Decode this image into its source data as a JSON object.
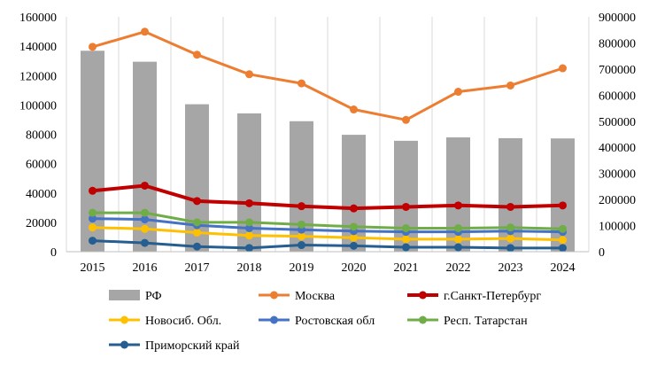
{
  "chart_data": {
    "type": "bar+line",
    "title": "",
    "xlabel": "",
    "ylabel": "",
    "categories": [
      "2015",
      "2016",
      "2017",
      "2018",
      "2019",
      "2020",
      "2021",
      "2022",
      "2023",
      "2024"
    ],
    "y_left": {
      "min": 0,
      "max": 160000,
      "step": 20000,
      "ticks": [
        "0",
        "20000",
        "40000",
        "60000",
        "80000",
        "100000",
        "120000",
        "140000",
        "160000"
      ]
    },
    "y_right": {
      "min": 0,
      "max": 900000,
      "step": 100000,
      "ticks": [
        "0",
        "100000",
        "200000",
        "300000",
        "400000",
        "500000",
        "600000",
        "700000",
        "800000",
        "900000"
      ]
    },
    "grid": "vertical",
    "legend_position": "bottom",
    "bar_series": {
      "name": "РФ",
      "axis": "right",
      "color": "#A6A6A6",
      "values": [
        770000,
        728000,
        565000,
        530000,
        500000,
        448000,
        425000,
        438000,
        435000,
        434000
      ]
    },
    "line_series": [
      {
        "name": "Москва",
        "axis": "right",
        "color": "#ED7D31",
        "width": 3,
        "values": [
          785000,
          843000,
          755000,
          680000,
          645000,
          545000,
          505000,
          613000,
          637000,
          703000
        ]
      },
      {
        "name": "г.Санкт-Петербург",
        "axis": "left",
        "color": "#C00000",
        "width": 4,
        "values": [
          41500,
          45000,
          34500,
          33000,
          31000,
          29500,
          30500,
          31500,
          30500,
          31500
        ]
      },
      {
        "name": "Новосиб. Обл.",
        "axis": "left",
        "color": "#FFC000",
        "width": 3,
        "values": [
          16500,
          15500,
          13000,
          11000,
          10500,
          9500,
          8500,
          8500,
          9000,
          8000
        ]
      },
      {
        "name": "Ростовская обл",
        "axis": "left",
        "color": "#4472C4",
        "width": 3,
        "values": [
          22500,
          22000,
          18000,
          16000,
          15000,
          14000,
          13500,
          13500,
          14000,
          13500
        ]
      },
      {
        "name": "Респ. Татарстан",
        "axis": "left",
        "color": "#70AD47",
        "width": 3,
        "values": [
          26500,
          26500,
          20000,
          20000,
          18500,
          17000,
          16000,
          16000,
          16500,
          15500
        ]
      },
      {
        "name": "Приморский край",
        "axis": "left",
        "color": "#255E91",
        "width": 3,
        "values": [
          7500,
          6000,
          3500,
          2500,
          4500,
          4000,
          3000,
          3000,
          2500,
          2500
        ]
      }
    ]
  }
}
